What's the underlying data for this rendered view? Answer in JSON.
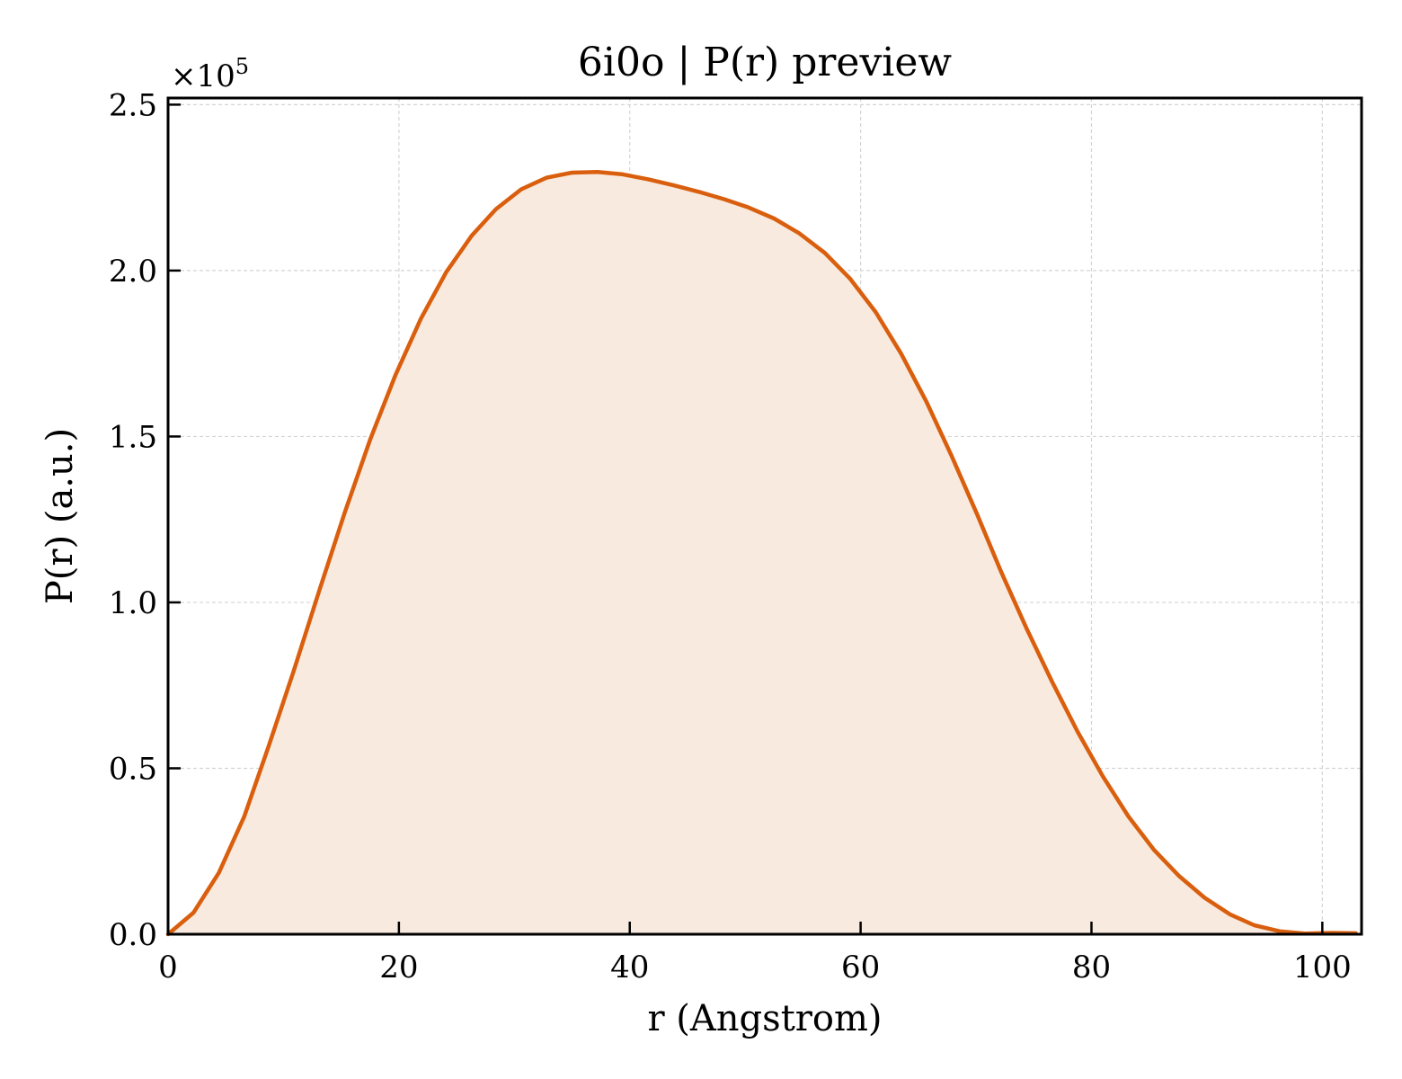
{
  "chart_data": {
    "type": "area",
    "title": "6i0o | P(r) preview",
    "xlabel": "r (Angstrom)",
    "ylabel": "P(r) (a.u.)",
    "y_scale_label": "×10",
    "y_scale_exponent": "5",
    "xlim": [
      0,
      103.4
    ],
    "ylim": [
      0,
      2.52
    ],
    "x_ticks": [
      0,
      20,
      40,
      60,
      80,
      100
    ],
    "x_tick_labels": [
      "0",
      "20",
      "40",
      "60",
      "80",
      "100"
    ],
    "y_ticks": [
      0.0,
      0.5,
      1.0,
      1.5,
      2.0,
      2.5
    ],
    "y_tick_labels": [
      "0.0",
      "0.5",
      "1.0",
      "1.5",
      "2.0",
      "2.5"
    ],
    "grid": true,
    "series": [
      {
        "line_color": "#d95f0e",
        "fill_color": "#f9eadf",
        "x": [
          0,
          2.2,
          4.4,
          6.6,
          8.7,
          10.9,
          13.1,
          15.3,
          17.5,
          19.7,
          21.9,
          24.1,
          26.3,
          28.4,
          30.6,
          32.8,
          35.0,
          37.2,
          39.4,
          41.6,
          43.8,
          46.0,
          48.2,
          50.3,
          52.5,
          54.7,
          56.9,
          59.1,
          61.3,
          63.5,
          65.7,
          67.9,
          70.1,
          72.2,
          74.4,
          76.6,
          78.8,
          81.0,
          83.2,
          85.4,
          87.6,
          89.8,
          92.0,
          94.1,
          96.3,
          98.5,
          100.7,
          102.9
        ],
        "values": [
          0.0,
          0.065,
          0.185,
          0.355,
          0.565,
          0.795,
          1.035,
          1.27,
          1.49,
          1.685,
          1.855,
          1.995,
          2.105,
          2.185,
          2.245,
          2.28,
          2.295,
          2.297,
          2.29,
          2.275,
          2.257,
          2.237,
          2.215,
          2.19,
          2.157,
          2.112,
          2.053,
          1.975,
          1.875,
          1.75,
          1.605,
          1.44,
          1.265,
          1.09,
          0.92,
          0.76,
          0.61,
          0.475,
          0.355,
          0.255,
          0.175,
          0.11,
          0.06,
          0.027,
          0.009,
          0.002,
          0.004,
          0.003
        ]
      }
    ]
  }
}
